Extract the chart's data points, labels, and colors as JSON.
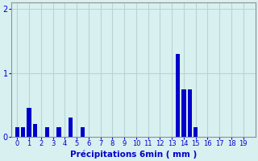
{
  "values": [
    0.15,
    0.15,
    0.45,
    0.2,
    0.0,
    0.15,
    0.0,
    0.15,
    0.0,
    0.3,
    0.0,
    0.15,
    0.0,
    0.0,
    0.0,
    0.0,
    0.0,
    0.0,
    0.0,
    0.0,
    0.0,
    0.0,
    0.0,
    0.0,
    0.0,
    0.0,
    0.0,
    1.3,
    0.75,
    0.75,
    0.15,
    0.0,
    0.0,
    0.0,
    0.0,
    0.0,
    0.0,
    0.0,
    0.0,
    0.0
  ],
  "bar_color": "#0000cc",
  "background_color": "#d8f0f0",
  "grid_color": "#b8d4d4",
  "text_color": "#0000cc",
  "xlabel": "Précipitations 6min ( mm )",
  "ylim": [
    0,
    2.1
  ],
  "yticks": [
    0,
    1,
    2
  ],
  "num_bars": 40,
  "x_tick_labels": [
    "0",
    "1",
    "2",
    "3",
    "4",
    "5",
    "6",
    "7",
    "8",
    "9",
    "10",
    "11",
    "12",
    "13",
    "14",
    "15",
    "16",
    "17",
    "18",
    "19"
  ],
  "x_tick_positions": [
    0,
    2,
    4,
    6,
    8,
    10,
    12,
    14,
    16,
    18,
    20,
    22,
    24,
    26,
    28,
    30,
    32,
    34,
    36,
    38
  ]
}
